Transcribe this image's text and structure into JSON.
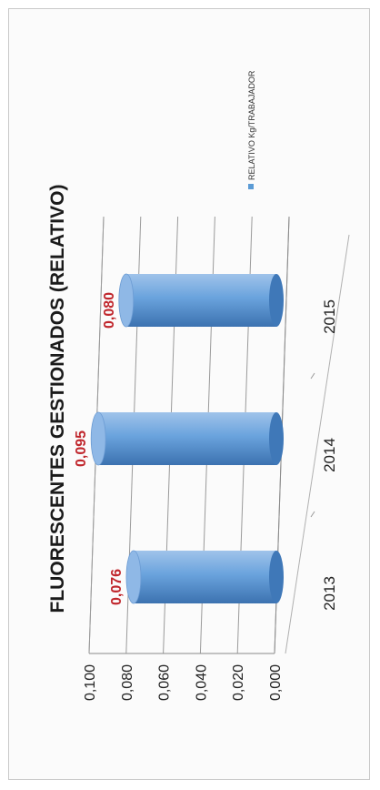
{
  "chart_data": {
    "type": "bar",
    "title": "FLUORESCENTES GESTIONADOS (RELATIVO)",
    "categories": [
      "2013",
      "2014",
      "2015"
    ],
    "series": [
      {
        "name": "RELATIVO Kg/TRABAJADOR",
        "values": [
          0.076,
          0.095,
          0.08
        ]
      }
    ],
    "data_labels": [
      "0,076",
      "0,095",
      "0,080"
    ],
    "y_ticks": [
      "0,000",
      "0,020",
      "0,040",
      "0,060",
      "0,080",
      "0,100"
    ],
    "ylim": [
      0,
      0.1
    ],
    "xlabel": "",
    "ylabel": "",
    "grid": true,
    "legend_position": "right",
    "bar_style": "3d-cylinder",
    "orientation": "rotated-90-ccw",
    "colors": {
      "bar": "#5b9bd5",
      "bar_dark": "#3f78b8",
      "bar_light": "#a9ccef",
      "data_label": "#c0272d"
    }
  }
}
